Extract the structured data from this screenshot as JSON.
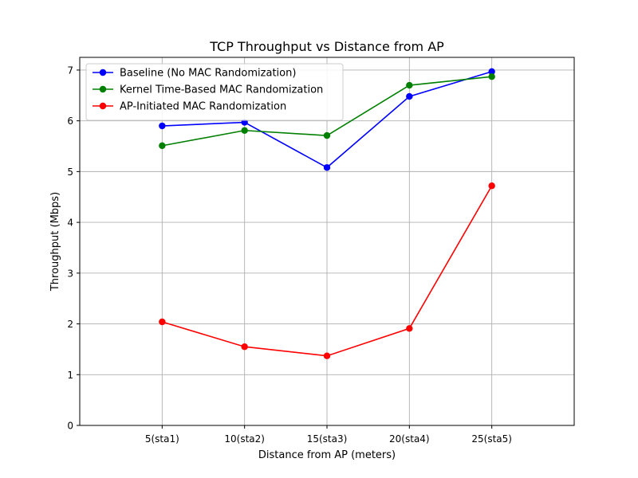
{
  "chart_data": {
    "type": "line",
    "title": "TCP Throughput vs Distance from AP",
    "xlabel": "Distance from AP (meters)",
    "ylabel": "Throughput (Mbps)",
    "categories": [
      "5(sta1)",
      "10(sta2)",
      "15(sta3)",
      "20(sta4)",
      "25(sta5)"
    ],
    "x": [
      5,
      10,
      15,
      20,
      25
    ],
    "xlim": [
      0,
      30
    ],
    "ylim": [
      0,
      7.25
    ],
    "yticks": [
      0,
      1,
      2,
      3,
      4,
      5,
      6,
      7
    ],
    "grid": true,
    "legend_position": "upper-left",
    "marker": "circle",
    "series": [
      {
        "name": "Baseline (No MAC Randomization)",
        "color": "#0000ff",
        "values": [
          5.9,
          5.97,
          5.08,
          6.48,
          6.97
        ]
      },
      {
        "name": "Kernel Time-Based MAC Randomization",
        "color": "#008000",
        "values": [
          5.51,
          5.81,
          5.71,
          6.7,
          6.87
        ]
      },
      {
        "name": "AP-Initiated MAC Randomization",
        "color": "#ff0000",
        "values": [
          2.04,
          1.55,
          1.37,
          1.91,
          4.72
        ]
      }
    ]
  }
}
